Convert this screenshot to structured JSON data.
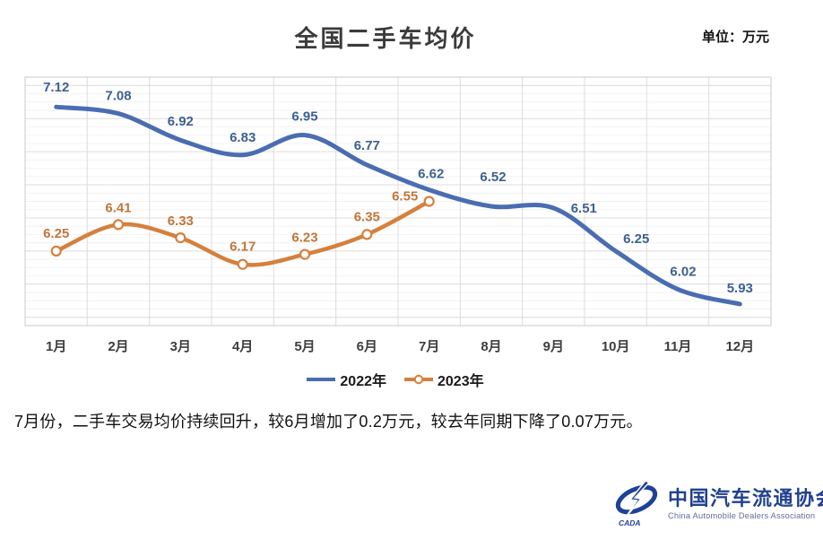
{
  "title": "全国二手车均价",
  "unit_label": "单位：万元",
  "chart_data": {
    "type": "line",
    "categories": [
      "1月",
      "2月",
      "3月",
      "4月",
      "5月",
      "6月",
      "7月",
      "8月",
      "9月",
      "10月",
      "11月",
      "12月"
    ],
    "series": [
      {
        "name": "2022年",
        "color": "#4a6db2",
        "label_color": "#3d6191",
        "marker": "none",
        "values": [
          7.12,
          7.08,
          6.92,
          6.83,
          6.95,
          6.77,
          6.62,
          6.52,
          6.51,
          6.25,
          6.02,
          5.93
        ]
      },
      {
        "name": "2023年",
        "color": "#d5803d",
        "label_color": "#c2763a",
        "marker": "circle",
        "values": [
          6.25,
          6.41,
          6.33,
          6.17,
          6.23,
          6.35,
          6.55
        ]
      }
    ],
    "ylim": [
      5.8,
      7.3
    ],
    "grid": "on",
    "legend_position": "bottom",
    "colors": {
      "grid_major": "#dcdcdc",
      "grid_minor": "#f2f2f2",
      "border": "#c9c9c9",
      "tick_label": "#3d3d3d"
    }
  },
  "caption": "7月份，二手车交易均价持续回升，较6月增加了0.2万元，较去年同期下降了0.07万元。",
  "logo": {
    "cn_name": "中国汽车流通协会",
    "en_name": "China Automobile Dealers Association",
    "badge": "CADA",
    "color": "#1f4198"
  }
}
